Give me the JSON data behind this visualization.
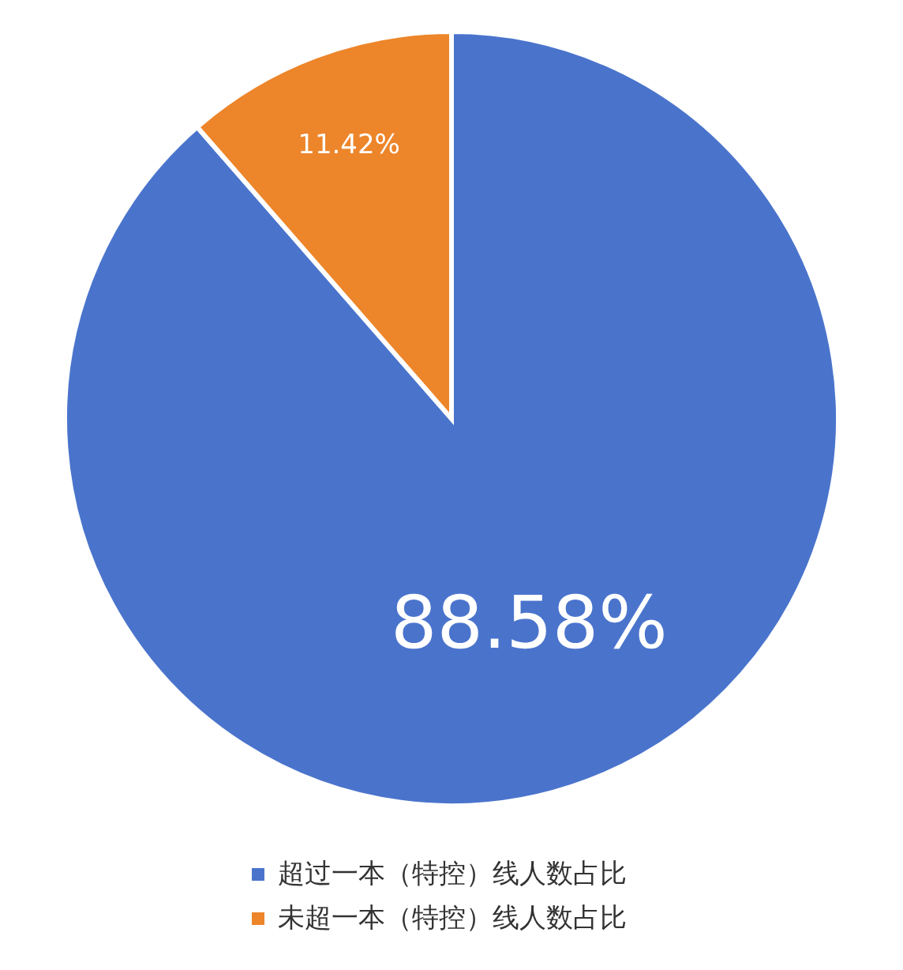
{
  "chart_data": {
    "type": "pie",
    "categories": [
      "超过一本（特控）线人数占比",
      "未超一本（特控）线人数占比"
    ],
    "values": [
      88.58,
      11.42
    ],
    "colors": [
      "#4a74cc",
      "#ed852a"
    ],
    "value_labels": [
      "88.58%",
      "11.42%"
    ],
    "legend": "bottom"
  }
}
